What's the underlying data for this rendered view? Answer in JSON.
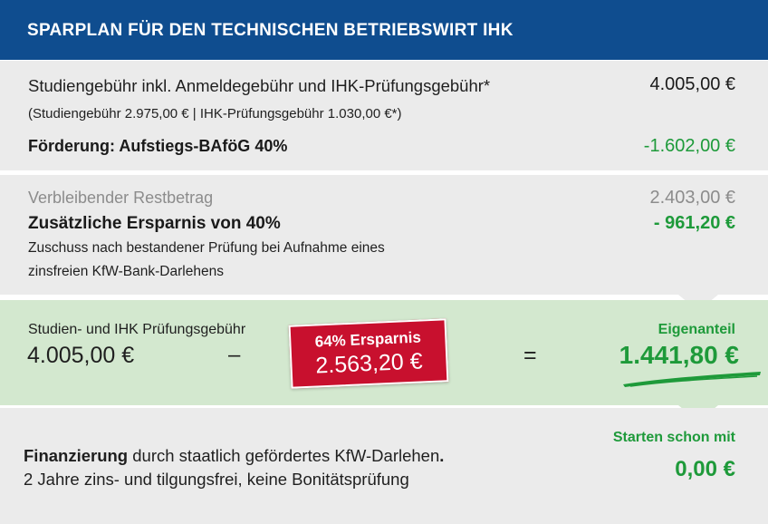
{
  "header": {
    "title": "SPARPLAN FÜR DEN TECHNISCHEN BETRIEBSWIRT IHK"
  },
  "section1": {
    "fee_label": "Studiengebühr inkl. Anmeldegebühr und IHK-Prüfungsgebühr*",
    "fee_detail": "(Studiengebühr 2.975,00 € | IHK-Prüfungsgebühr 1.030,00 €*)",
    "fee_amount": "4.005,00 €",
    "funding_label": "Förderung: Aufstiegs-BAföG 40%",
    "funding_amount": "-1.602,00 €"
  },
  "section2": {
    "remaining_label": "Verbleibender Restbetrag",
    "remaining_amount": "2.403,00 €",
    "extra_label": "Zusätzliche Ersparnis von 40%",
    "extra_amount": "- 961,20 €",
    "extra_note_line1": "Zuschuss nach bestandener Prüfung bei Aufnahme eines",
    "extra_note_line2": "zinsfreien KfW-Bank-Darlehens"
  },
  "section3": {
    "fees_label": "Studien- und IHK Prüfungsgebühr",
    "fees_amount": "4.005,00 €",
    "minus_sign": "–",
    "badge_top": "64% Ersparnis",
    "badge_amount": "2.563,20 €",
    "equals_sign": "=",
    "own_share_label": "Eigenanteil",
    "own_share_amount": "1.441,80 €"
  },
  "section4": {
    "financing_bold": "Finanzierung",
    "financing_text": " durch staatlich gefördertes KfW-Darlehen",
    "financing_period": ".",
    "financing_line2": "2 Jahre zins- und tilgungsfrei, keine Bonitätsprüfung",
    "start_label": "Starten schon mit",
    "start_amount": "0,00 €"
  },
  "colors": {
    "header_blue": "#0f4d8f",
    "panel_gray": "#ebebeb",
    "panel_green": "#d3e8cf",
    "accent_green": "#1e9a3a",
    "badge_red": "#c8102e"
  }
}
